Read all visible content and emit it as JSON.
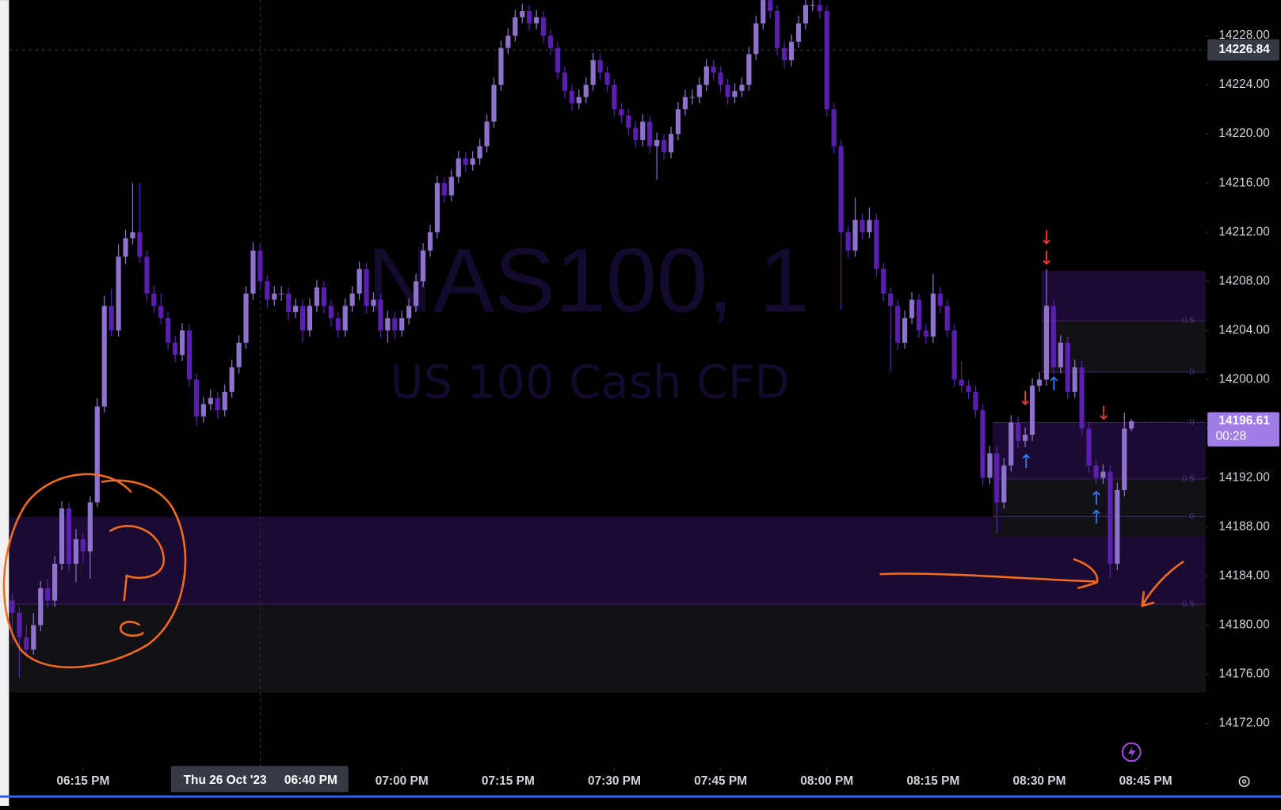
{
  "chart_data": {
    "type": "candlestick",
    "title": "NAS100, 1",
    "subtitle": "US 100 Cash CFD",
    "colors": {
      "up": "#8e72cc",
      "down": "#5a1fae"
    },
    "ohlc": [
      [
        14182,
        14182.6,
        14178.5,
        14181
      ],
      [
        14181,
        14181.5,
        14175.7,
        14179
      ],
      [
        14179,
        14180,
        14177.4,
        14178
      ],
      [
        14178,
        14181,
        14177.6,
        14180
      ],
      [
        14180,
        14183.6,
        14179.5,
        14183
      ],
      [
        14183,
        14183.8,
        14181.4,
        14182
      ],
      [
        14182,
        14185.6,
        14181.5,
        14185
      ],
      [
        14185,
        14190.1,
        14184.5,
        14189.5
      ],
      [
        14189.5,
        14190,
        14184.4,
        14185
      ],
      [
        14185,
        14187.8,
        14183.5,
        14187
      ],
      [
        14187,
        14187.5,
        14185,
        14186
      ],
      [
        14186,
        14190.5,
        14183.8,
        14190
      ],
      [
        14190,
        14198.5,
        14189.6,
        14197.8
      ],
      [
        14197.8,
        14206.8,
        14197.3,
        14206
      ],
      [
        14206,
        14207.4,
        14203.5,
        14204
      ],
      [
        14204,
        14211,
        14203.5,
        14210
      ],
      [
        14210,
        14212.2,
        14209.4,
        14211.5
      ],
      [
        14211.5,
        14216,
        14211,
        14212
      ],
      [
        14212,
        14216,
        14209.5,
        14210
      ],
      [
        14210,
        14210.5,
        14206.4,
        14207
      ],
      [
        14207,
        14207.6,
        14205.4,
        14206
      ],
      [
        14206,
        14207,
        14204.5,
        14205
      ],
      [
        14205,
        14205.5,
        14202.4,
        14203
      ],
      [
        14203,
        14203.6,
        14201.4,
        14202
      ],
      [
        14202,
        14204.6,
        14201.5,
        14204
      ],
      [
        14204,
        14204.5,
        14199.4,
        14200
      ],
      [
        14200,
        14200.5,
        14196.2,
        14197
      ],
      [
        14197,
        14198.6,
        14196.5,
        14198
      ],
      [
        14198,
        14199.2,
        14197.5,
        14198.5
      ],
      [
        14198.5,
        14199,
        14196.8,
        14197.5
      ],
      [
        14197.5,
        14199.6,
        14197,
        14199
      ],
      [
        14199,
        14201.6,
        14198.5,
        14201
      ],
      [
        14201,
        14203.6,
        14200.5,
        14203
      ],
      [
        14203,
        14207.6,
        14202.5,
        14207
      ],
      [
        14207,
        14211.2,
        14206.5,
        14210.5
      ],
      [
        14210.5,
        14211,
        14207.4,
        14208
      ],
      [
        14208,
        14208.5,
        14205.8,
        14206.5
      ],
      [
        14206.5,
        14207.6,
        14206,
        14207
      ],
      [
        14207,
        14207.6,
        14206.4,
        14207
      ],
      [
        14207,
        14207.5,
        14204.8,
        14205.5
      ],
      [
        14205.5,
        14206.6,
        14205,
        14206
      ],
      [
        14206,
        14206.5,
        14203,
        14204
      ],
      [
        14204,
        14206.6,
        14203.5,
        14206
      ],
      [
        14206,
        14208.1,
        14205.5,
        14207.5
      ],
      [
        14207.5,
        14208,
        14205.4,
        14206
      ],
      [
        14206,
        14206.5,
        14204.3,
        14205
      ],
      [
        14205,
        14205.5,
        14203.4,
        14204
      ],
      [
        14204,
        14206.6,
        14203.5,
        14206
      ],
      [
        14206,
        14207.6,
        14205.5,
        14207
      ],
      [
        14207,
        14209.6,
        14206.5,
        14209
      ],
      [
        14209,
        14209.5,
        14205.4,
        14206
      ],
      [
        14206,
        14207.1,
        14205.5,
        14206.5
      ],
      [
        14206.5,
        14207,
        14203.4,
        14204
      ],
      [
        14204,
        14205.6,
        14203,
        14205
      ],
      [
        14205,
        14205.5,
        14203.3,
        14204
      ],
      [
        14204,
        14205.6,
        14203.5,
        14205
      ],
      [
        14205,
        14206.6,
        14204.5,
        14206
      ],
      [
        14206,
        14208.6,
        14205.5,
        14208
      ],
      [
        14208,
        14211.1,
        14207.5,
        14210.5
      ],
      [
        14210.5,
        14212.6,
        14210,
        14212
      ],
      [
        14212,
        14216.6,
        14211.5,
        14216
      ],
      [
        14216,
        14216.5,
        14214.4,
        14215
      ],
      [
        14215,
        14217.1,
        14214.5,
        14216.5
      ],
      [
        14216.5,
        14218.6,
        14216,
        14218
      ],
      [
        14218,
        14218.5,
        14216.9,
        14217.5
      ],
      [
        14217.5,
        14218.6,
        14217,
        14218
      ],
      [
        14218,
        14219.6,
        14217.5,
        14219
      ],
      [
        14219,
        14221.6,
        14218.5,
        14221
      ],
      [
        14221,
        14224.6,
        14220.5,
        14224
      ],
      [
        14224,
        14227.6,
        14223.5,
        14227
      ],
      [
        14227,
        14228.6,
        14226.5,
        14228
      ],
      [
        14228,
        14230.1,
        14227.5,
        14229.5
      ],
      [
        14229.5,
        14230.6,
        14229,
        14230
      ],
      [
        14230,
        14230.5,
        14228.4,
        14229
      ],
      [
        14229,
        14230.1,
        14228.5,
        14229.5
      ],
      [
        14229.5,
        14230,
        14227.4,
        14228
      ],
      [
        14228,
        14228.5,
        14226.4,
        14227
      ],
      [
        14227,
        14227.5,
        14224.4,
        14225
      ],
      [
        14225,
        14225.5,
        14222.9,
        14223.5
      ],
      [
        14223.5,
        14224,
        14221.9,
        14222.5
      ],
      [
        14222.5,
        14223.6,
        14222,
        14223
      ],
      [
        14223,
        14224.6,
        14222.5,
        14224
      ],
      [
        14224,
        14226.6,
        14223.5,
        14226
      ],
      [
        14226,
        14226.5,
        14224.4,
        14225
      ],
      [
        14225,
        14225.5,
        14223.4,
        14224
      ],
      [
        14224,
        14224.5,
        14221.4,
        14222
      ],
      [
        14222,
        14222.5,
        14220.9,
        14221.5
      ],
      [
        14221.5,
        14222,
        14219.9,
        14220.5
      ],
      [
        14220.5,
        14221,
        14218.9,
        14219.5
      ],
      [
        14219.5,
        14221.6,
        14219,
        14221
      ],
      [
        14221,
        14221.5,
        14218.4,
        14219
      ],
      [
        14219,
        14220.1,
        14216.3,
        14219.5
      ],
      [
        14219.5,
        14220,
        14217.9,
        14218.5
      ],
      [
        14218.5,
        14220.6,
        14218,
        14220
      ],
      [
        14220,
        14222.6,
        14219.5,
        14222
      ],
      [
        14222,
        14223.6,
        14221.5,
        14223
      ],
      [
        14223,
        14223.6,
        14222.4,
        14223
      ],
      [
        14223,
        14224.6,
        14222.5,
        14224
      ],
      [
        14224,
        14226.1,
        14223.5,
        14225.5
      ],
      [
        14225.5,
        14226,
        14224.4,
        14225
      ],
      [
        14225,
        14225.5,
        14223.4,
        14224
      ],
      [
        14224,
        14224.5,
        14222.4,
        14223
      ],
      [
        14223,
        14224.1,
        14222.5,
        14223.5
      ],
      [
        14223.5,
        14224.6,
        14223,
        14224
      ],
      [
        14224,
        14227.1,
        14223.5,
        14226.5
      ],
      [
        14226.5,
        14229.6,
        14226,
        14229
      ],
      [
        14229,
        14231.6,
        14228.5,
        14231
      ],
      [
        14231,
        14231.5,
        14229.4,
        14230
      ],
      [
        14230,
        14230.5,
        14226.4,
        14227
      ],
      [
        14227,
        14227.5,
        14225.4,
        14226
      ],
      [
        14226,
        14228.1,
        14225.5,
        14227.5
      ],
      [
        14227.5,
        14229.6,
        14227,
        14229
      ],
      [
        14229,
        14231.1,
        14228.5,
        14230.5
      ],
      [
        14230.5,
        14231.1,
        14230,
        14230.5
      ],
      [
        14230.5,
        14231,
        14229.4,
        14230
      ],
      [
        14230,
        14230.5,
        14221.4,
        14222
      ],
      [
        14222,
        14222.5,
        14218.4,
        14219
      ],
      [
        14219,
        14219.5,
        14205.7,
        14212
      ],
      [
        14212,
        14212.5,
        14209.9,
        14210.5
      ],
      [
        14210.5,
        14214.8,
        14210,
        14213
      ],
      [
        14213,
        14213.5,
        14211.4,
        14212
      ],
      [
        14212,
        14214,
        14211.5,
        14213
      ],
      [
        14213,
        14213.5,
        14208.4,
        14209
      ],
      [
        14209,
        14209.5,
        14206.4,
        14207
      ],
      [
        14207,
        14207.5,
        14200.6,
        14206
      ],
      [
        14206,
        14206.5,
        14202.4,
        14203
      ],
      [
        14203,
        14205.6,
        14202.5,
        14205
      ],
      [
        14205,
        14207.1,
        14204.5,
        14206.5
      ],
      [
        14206.5,
        14207,
        14203.4,
        14204
      ],
      [
        14204,
        14204.5,
        14202.9,
        14203.5
      ],
      [
        14203.5,
        14208.6,
        14203,
        14207
      ],
      [
        14207,
        14207.5,
        14205.4,
        14206
      ],
      [
        14206,
        14206.5,
        14203.4,
        14204
      ],
      [
        14204,
        14204.5,
        14199.4,
        14200
      ],
      [
        14200,
        14201.5,
        14198.9,
        14199.5
      ],
      [
        14199.5,
        14200,
        14198.4,
        14199
      ],
      [
        14199,
        14199.5,
        14196.9,
        14197.5
      ],
      [
        14197.5,
        14198,
        14191.4,
        14192
      ],
      [
        14192,
        14194.6,
        14191.5,
        14194
      ],
      [
        14194,
        14194.5,
        14187.5,
        14190
      ],
      [
        14190,
        14193.6,
        14189.5,
        14193
      ],
      [
        14193,
        14197.1,
        14192.5,
        14196.5
      ],
      [
        14196.5,
        14197,
        14194.4,
        14195
      ],
      [
        14195,
        14196.1,
        14194.5,
        14195.5
      ],
      [
        14195.5,
        14200.1,
        14195,
        14199.5
      ],
      [
        14199.5,
        14200.6,
        14199,
        14200
      ],
      [
        14200,
        14209,
        14199.5,
        14206
      ],
      [
        14206,
        14206.5,
        14200.4,
        14201
      ],
      [
        14201,
        14203.6,
        14200.5,
        14203
      ],
      [
        14203,
        14203.5,
        14198.4,
        14199
      ],
      [
        14199,
        14201.6,
        14198.5,
        14201
      ],
      [
        14201,
        14201.5,
        14195.4,
        14196
      ],
      [
        14196,
        14196.5,
        14192.4,
        14193
      ],
      [
        14193,
        14193.5,
        14191.4,
        14192
      ],
      [
        14192,
        14193.1,
        14191.5,
        14192.5
      ],
      [
        14192.5,
        14193,
        14183.8,
        14185
      ],
      [
        14185,
        14191.6,
        14184.5,
        14191
      ],
      [
        14191,
        14197.3,
        14190.5,
        14196
      ],
      [
        14196,
        14196.8,
        14195.8,
        14196.61
      ]
    ],
    "xlim": [
      -0.46,
      168.5
    ],
    "xticks": [
      {
        "value": 10,
        "label": "06:15 PM"
      },
      {
        "value": 55,
        "label": "07:00 PM"
      },
      {
        "value": 70,
        "label": "07:15 PM"
      },
      {
        "value": 85,
        "label": "07:30 PM"
      },
      {
        "value": 100,
        "label": "07:45 PM"
      },
      {
        "value": 115,
        "label": "08:00 PM"
      },
      {
        "value": 130,
        "label": "08:15 PM"
      },
      {
        "value": 145,
        "label": "08:30 PM"
      },
      {
        "value": 160,
        "label": "08:45 PM"
      }
    ],
    "ylim": [
      14168.4,
      14230.9
    ],
    "yticks": [
      {
        "value": 14172,
        "label": "14172.00"
      },
      {
        "value": 14176,
        "label": "14176.00"
      },
      {
        "value": 14180,
        "label": "14180.00"
      },
      {
        "value": 14184,
        "label": "14184.00"
      },
      {
        "value": 14188,
        "label": "14188.00"
      },
      {
        "value": 14192,
        "label": "14192.00"
      },
      {
        "value": 14196,
        "label": "14196.00"
      },
      {
        "value": 14200,
        "label": "14200.00"
      },
      {
        "value": 14204,
        "label": "14204.00"
      },
      {
        "value": 14208,
        "label": "14208.00"
      },
      {
        "value": 14212,
        "label": "14212.00"
      },
      {
        "value": 14216,
        "label": "14216.00"
      },
      {
        "value": 14220,
        "label": "14220.00"
      },
      {
        "value": 14224,
        "label": "14224.00"
      },
      {
        "value": 14228,
        "label": "14228.00"
      }
    ],
    "zones": [
      {
        "top": 14188.84,
        "bottom": 14174.5,
        "from": -0.46,
        "levels": [
          {
            "value": 14181.7,
            "label": "0.5"
          }
        ]
      },
      {
        "top": 14208.85,
        "bottom": 14200.6,
        "from": 145.3,
        "levels": [
          {
            "value": 14204.8,
            "label": "0.5"
          },
          {
            "value": 14200.6,
            "label": "0"
          }
        ]
      },
      {
        "top": 14196.5,
        "bottom": 14187.2,
        "from": 138.4,
        "levels": [
          {
            "value": 14196.5,
            "label": "0"
          },
          {
            "value": 14191.9,
            "label": "0.5"
          },
          {
            "value": 14188.84,
            "label": "0"
          }
        ]
      }
    ],
    "crosshair": {
      "x": 35,
      "date_label": "Thu 26 Oct '23",
      "time_label": "06:40 PM",
      "y": 14226.84
    },
    "last_price": {
      "value": 14196.61,
      "countdown": "00:28"
    }
  }
}
